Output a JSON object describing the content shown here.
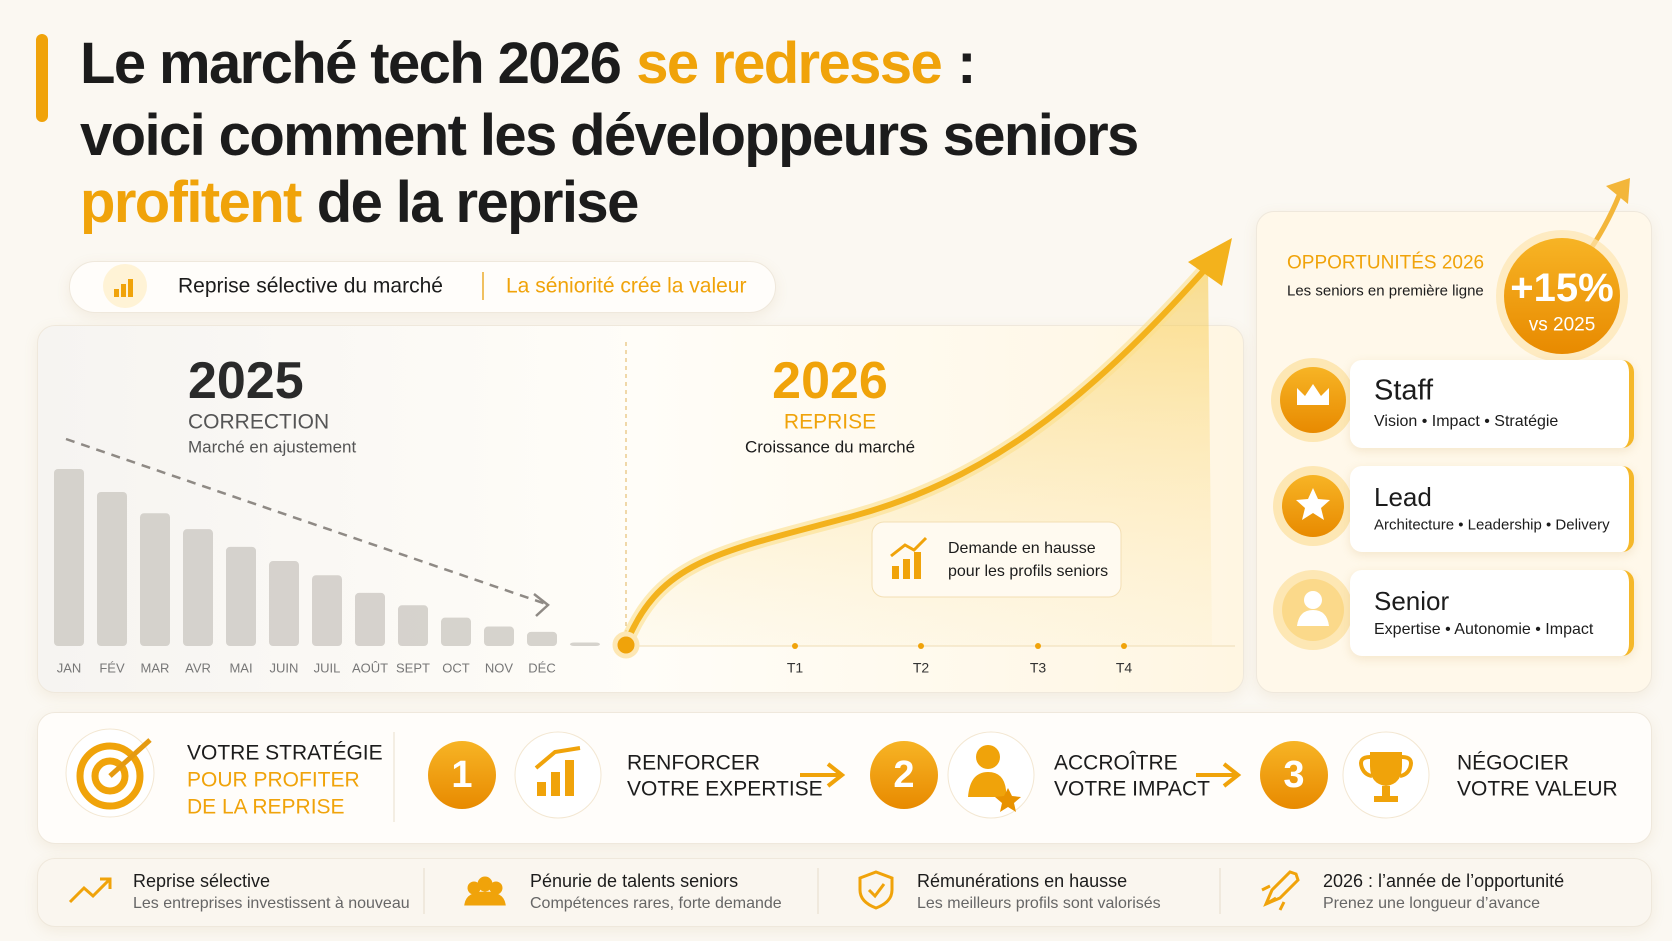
{
  "header": {
    "title": [
      [
        {
          "text": "Le marché tech 2026"
        },
        {
          "text": "se redresse",
          "color": "#f0a30a"
        },
        {
          "text": ":"
        }
      ],
      [
        {
          "text": "voici comment les développeurs seniors"
        }
      ],
      [
        {
          "text": "profitent",
          "color": "#f0a30a"
        },
        {
          "text": "de la reprise"
        }
      ]
    ]
  },
  "tags": {
    "left": "Reprise sélective du marché",
    "right": "La séniorité crée la valeur"
  },
  "chart_data": {
    "type": "bar",
    "categories": [
      "JAN",
      "FÉV",
      "MAR",
      "AVR",
      "MAI",
      "JUIN",
      "JUIL",
      "AOÛT",
      "SEPT",
      "OCT",
      "NOV",
      "DÉC",
      null
    ],
    "values": [
      100,
      87,
      75,
      66,
      56,
      48,
      40,
      30,
      23,
      16,
      11,
      8,
      2
    ],
    "color": "#cfcbc6",
    "period_2025": {
      "year": "2025",
      "label": "CORRECTION",
      "caption": "Marché en ajustement"
    },
    "period_2026": {
      "year": "2026",
      "label": "REPRISE",
      "caption": "Croissance du marché"
    },
    "quarters": [
      "T1",
      "T2",
      "T3",
      "T4"
    ],
    "callout": [
      "Demande en hausse",
      "pour les profils seniors"
    ]
  },
  "opportunities": {
    "title": "OPPORTUNITÉS 2026",
    "subtitle": "Les seniors en première ligne",
    "badge": {
      "value": "+15%",
      "caption": "vs 2025"
    },
    "roles": [
      {
        "title": "Staff",
        "skills": "Vision • Impact • Stratégie"
      },
      {
        "title": "Lead",
        "skills": "Architecture • Leadership • Delivery"
      },
      {
        "title": "Senior",
        "skills": "Expertise • Autonomie • Impact"
      }
    ]
  },
  "strategy": {
    "title": [
      "VOTRE STRATÉGIE",
      "POUR PROFITER",
      "DE LA REPRISE"
    ],
    "steps": [
      {
        "number": 1,
        "lines": [
          "RENFORCER",
          "VOTRE EXPERTISE"
        ]
      },
      {
        "number": 2,
        "lines": [
          "ACCROÎTRE",
          "VOTRE IMPACT"
        ]
      },
      {
        "number": 3,
        "lines": [
          "NÉGOCIER",
          "VOTRE VALEUR"
        ]
      }
    ]
  },
  "footer": [
    {
      "title": "Reprise sélective",
      "text": "Les entreprises investissent à nouveau"
    },
    {
      "title": "Pénurie de talents seniors",
      "text": "Compétences rares, forte demande"
    },
    {
      "title": "Rémunérations en hausse",
      "text": "Les meilleurs profils sont valorisés"
    },
    {
      "title": "2026 : l’année de l’opportunité",
      "text": "Prenez une longueur d’avance"
    }
  ]
}
